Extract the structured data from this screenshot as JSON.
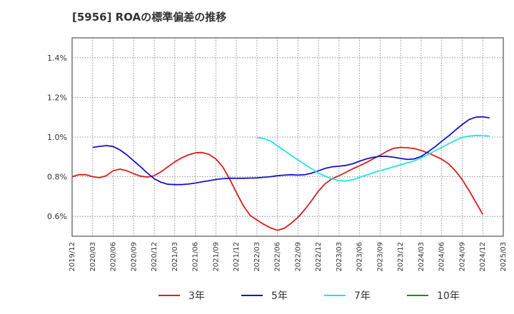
{
  "chart_data": {
    "type": "line",
    "title": "[5956]  ROAの標準偏差の推移",
    "xlabel": "",
    "ylabel": "",
    "ylim": [
      0.5,
      1.5
    ],
    "yticks": [
      0.6,
      0.8,
      1.0,
      1.2,
      1.4
    ],
    "ytick_labels": [
      "0.6%",
      "0.8%",
      "1.0%",
      "1.2%",
      "1.4%"
    ],
    "xticks": [
      "2019/12",
      "2020/03",
      "2020/06",
      "2020/09",
      "2020/12",
      "2021/03",
      "2021/06",
      "2021/09",
      "2021/12",
      "2022/03",
      "2022/06",
      "2022/09",
      "2022/12",
      "2023/03",
      "2023/06",
      "2023/09",
      "2023/12",
      "2024/03",
      "2024/06",
      "2024/09",
      "2024/12",
      "2025/03"
    ],
    "grid": true,
    "legend_position": "bottom",
    "series": [
      {
        "name": "3年",
        "color": "#dd1c1c",
        "points": [
          [
            "2019/12",
            0.8
          ],
          [
            "2020/01",
            0.81
          ],
          [
            "2020/02",
            0.81
          ],
          [
            "2020/03",
            0.8
          ],
          [
            "2020/04",
            0.795
          ],
          [
            "2020/05",
            0.805
          ],
          [
            "2020/06",
            0.83
          ],
          [
            "2020/07",
            0.838
          ],
          [
            "2020/08",
            0.83
          ],
          [
            "2020/09",
            0.815
          ],
          [
            "2020/10",
            0.803
          ],
          [
            "2020/11",
            0.798
          ],
          [
            "2020/12",
            0.805
          ],
          [
            "2021/01",
            0.825
          ],
          [
            "2021/02",
            0.85
          ],
          [
            "2021/03",
            0.875
          ],
          [
            "2021/04",
            0.895
          ],
          [
            "2021/05",
            0.91
          ],
          [
            "2021/06",
            0.92
          ],
          [
            "2021/07",
            0.922
          ],
          [
            "2021/08",
            0.913
          ],
          [
            "2021/09",
            0.89
          ],
          [
            "2021/10",
            0.85
          ],
          [
            "2021/11",
            0.79
          ],
          [
            "2021/12",
            0.72
          ],
          [
            "2022/01",
            0.655
          ],
          [
            "2022/02",
            0.605
          ],
          [
            "2022/03",
            0.582
          ],
          [
            "2022/04",
            0.56
          ],
          [
            "2022/05",
            0.542
          ],
          [
            "2022/06",
            0.53
          ],
          [
            "2022/07",
            0.54
          ],
          [
            "2022/08",
            0.565
          ],
          [
            "2022/09",
            0.595
          ],
          [
            "2022/10",
            0.635
          ],
          [
            "2022/11",
            0.68
          ],
          [
            "2022/12",
            0.728
          ],
          [
            "2023/01",
            0.765
          ],
          [
            "2023/02",
            0.79
          ],
          [
            "2023/03",
            0.805
          ],
          [
            "2023/04",
            0.822
          ],
          [
            "2023/05",
            0.84
          ],
          [
            "2023/06",
            0.855
          ],
          [
            "2023/07",
            0.872
          ],
          [
            "2023/08",
            0.89
          ],
          [
            "2023/09",
            0.908
          ],
          [
            "2023/10",
            0.928
          ],
          [
            "2023/11",
            0.943
          ],
          [
            "2023/12",
            0.948
          ],
          [
            "2024/01",
            0.946
          ],
          [
            "2024/02",
            0.942
          ],
          [
            "2024/03",
            0.932
          ],
          [
            "2024/04",
            0.92
          ],
          [
            "2024/05",
            0.905
          ],
          [
            "2024/06",
            0.888
          ],
          [
            "2024/07",
            0.865
          ],
          [
            "2024/08",
            0.83
          ],
          [
            "2024/09",
            0.785
          ],
          [
            "2024/10",
            0.73
          ],
          [
            "2024/11",
            0.67
          ],
          [
            "2024/12",
            0.61
          ]
        ]
      },
      {
        "name": "5年",
        "color": "#1414c8",
        "points": [
          [
            "2020/03",
            0.948
          ],
          [
            "2020/04",
            0.953
          ],
          [
            "2020/05",
            0.957
          ],
          [
            "2020/06",
            0.952
          ],
          [
            "2020/07",
            0.935
          ],
          [
            "2020/08",
            0.91
          ],
          [
            "2020/09",
            0.88
          ],
          [
            "2020/10",
            0.85
          ],
          [
            "2020/11",
            0.818
          ],
          [
            "2020/12",
            0.79
          ],
          [
            "2021/01",
            0.772
          ],
          [
            "2021/02",
            0.762
          ],
          [
            "2021/03",
            0.76
          ],
          [
            "2021/04",
            0.76
          ],
          [
            "2021/05",
            0.763
          ],
          [
            "2021/06",
            0.768
          ],
          [
            "2021/07",
            0.774
          ],
          [
            "2021/08",
            0.78
          ],
          [
            "2021/09",
            0.786
          ],
          [
            "2021/10",
            0.79
          ],
          [
            "2021/11",
            0.792
          ],
          [
            "2021/12",
            0.792
          ],
          [
            "2022/01",
            0.792
          ],
          [
            "2022/02",
            0.793
          ],
          [
            "2022/03",
            0.794
          ],
          [
            "2022/04",
            0.797
          ],
          [
            "2022/05",
            0.8
          ],
          [
            "2022/06",
            0.805
          ],
          [
            "2022/07",
            0.808
          ],
          [
            "2022/08",
            0.81
          ],
          [
            "2022/09",
            0.808
          ],
          [
            "2022/10",
            0.81
          ],
          [
            "2022/11",
            0.818
          ],
          [
            "2022/12",
            0.83
          ],
          [
            "2023/01",
            0.842
          ],
          [
            "2023/02",
            0.85
          ],
          [
            "2023/03",
            0.853
          ],
          [
            "2023/04",
            0.857
          ],
          [
            "2023/05",
            0.865
          ],
          [
            "2023/06",
            0.878
          ],
          [
            "2023/07",
            0.89
          ],
          [
            "2023/08",
            0.898
          ],
          [
            "2023/09",
            0.903
          ],
          [
            "2023/10",
            0.902
          ],
          [
            "2023/11",
            0.898
          ],
          [
            "2023/12",
            0.892
          ],
          [
            "2024/01",
            0.887
          ],
          [
            "2024/02",
            0.89
          ],
          [
            "2024/03",
            0.902
          ],
          [
            "2024/04",
            0.925
          ],
          [
            "2024/05",
            0.95
          ],
          [
            "2024/06",
            0.978
          ],
          [
            "2024/07",
            1.005
          ],
          [
            "2024/08",
            1.035
          ],
          [
            "2024/09",
            1.063
          ],
          [
            "2024/10",
            1.088
          ],
          [
            "2024/11",
            1.1
          ],
          [
            "2024/12",
            1.102
          ],
          [
            "2025/01",
            1.096
          ]
        ]
      },
      {
        "name": "7年",
        "color": "#1ee6e6",
        "points": [
          [
            "2022/03",
            0.998
          ],
          [
            "2022/04",
            0.992
          ],
          [
            "2022/05",
            0.98
          ],
          [
            "2022/06",
            0.955
          ],
          [
            "2022/07",
            0.932
          ],
          [
            "2022/08",
            0.908
          ],
          [
            "2022/09",
            0.885
          ],
          [
            "2022/10",
            0.862
          ],
          [
            "2022/11",
            0.84
          ],
          [
            "2022/12",
            0.818
          ],
          [
            "2023/01",
            0.802
          ],
          [
            "2023/02",
            0.788
          ],
          [
            "2023/03",
            0.78
          ],
          [
            "2023/04",
            0.778
          ],
          [
            "2023/05",
            0.785
          ],
          [
            "2023/06",
            0.797
          ],
          [
            "2023/07",
            0.808
          ],
          [
            "2023/08",
            0.82
          ],
          [
            "2023/09",
            0.83
          ],
          [
            "2023/10",
            0.84
          ],
          [
            "2023/11",
            0.85
          ],
          [
            "2023/12",
            0.86
          ],
          [
            "2024/01",
            0.87
          ],
          [
            "2024/02",
            0.88
          ],
          [
            "2024/03",
            0.895
          ],
          [
            "2024/04",
            0.912
          ],
          [
            "2024/05",
            0.93
          ],
          [
            "2024/06",
            0.948
          ],
          [
            "2024/07",
            0.966
          ],
          [
            "2024/08",
            0.983
          ],
          [
            "2024/09",
            0.998
          ],
          [
            "2024/10",
            1.005
          ],
          [
            "2024/11",
            1.008
          ],
          [
            "2024/12",
            1.007
          ],
          [
            "2025/01",
            1.005
          ]
        ]
      },
      {
        "name": "10年",
        "color": "#1a8c1a",
        "points": []
      }
    ]
  }
}
